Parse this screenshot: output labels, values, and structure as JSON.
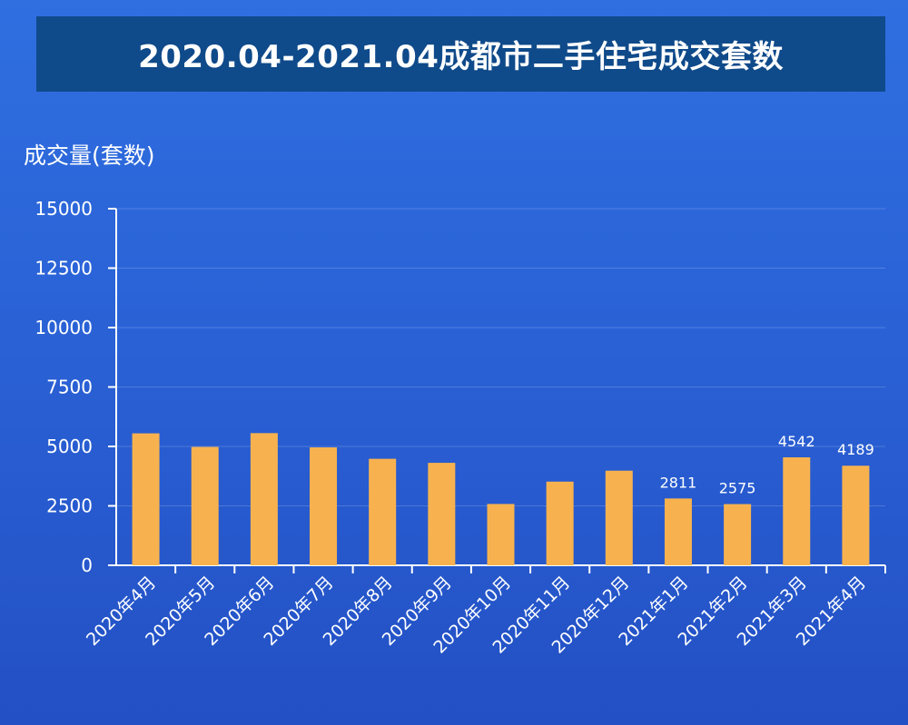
{
  "chart_data": {
    "type": "bar",
    "title": "2020.04-2021.04成都市二手住宅成交套数",
    "ylabel": "成交量(套数)",
    "xlabel": "",
    "ylim": [
      0,
      15000
    ],
    "yticks": [
      0,
      2500,
      5000,
      7500,
      10000,
      12500,
      15000
    ],
    "categories": [
      "2020年4月",
      "2020年5月",
      "2020年6月",
      "2020年7月",
      "2020年8月",
      "2020年9月",
      "2020年10月",
      "2020年11月",
      "2020年12月",
      "2021年1月",
      "2021年2月",
      "2021年3月",
      "2021年4月"
    ],
    "values": [
      5550,
      4980,
      5560,
      4960,
      4480,
      4310,
      2580,
      3520,
      3980,
      2811,
      2575,
      4542,
      4189
    ],
    "data_labels": [
      "",
      "",
      "",
      "",
      "",
      "",
      "",
      "",
      "",
      "2811",
      "2575",
      "4542",
      "4189"
    ],
    "bar_color": "#f7b24f",
    "grid": true
  }
}
